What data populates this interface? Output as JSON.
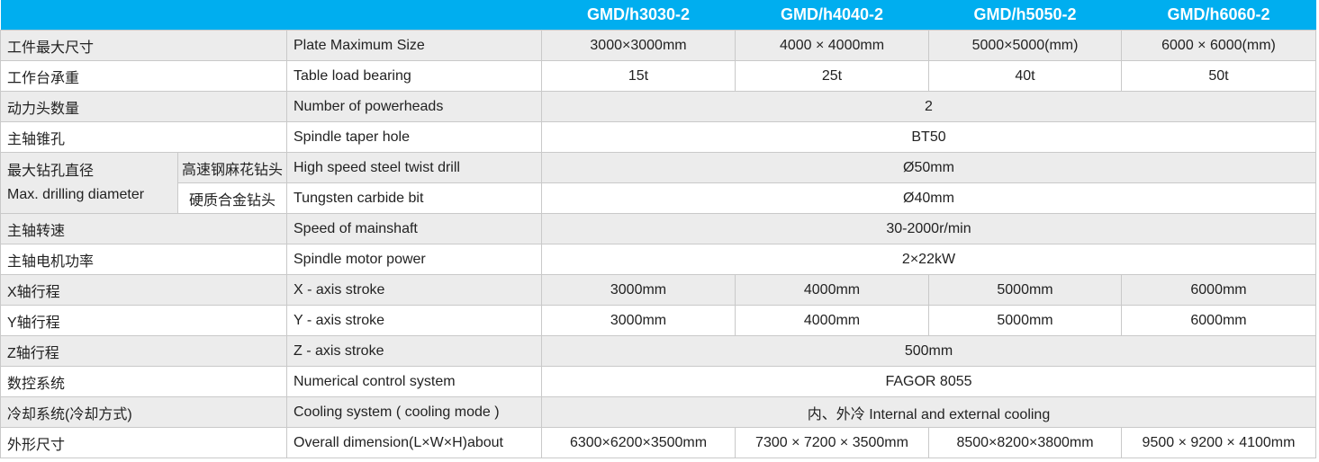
{
  "header": {
    "models": [
      "GMD/h3030-2",
      "GMD/h4040-2",
      "GMD/h5050-2",
      "GMD/h6060-2"
    ]
  },
  "colors": {
    "header_bg": "#00aeef",
    "stripe": "#ececec"
  },
  "rows": [
    {
      "cn": "工件最大尺寸",
      "en": "Plate Maximum Size",
      "values": [
        "3000×3000mm",
        "4000 × 4000mm",
        "5000×5000(mm)",
        "6000 × 6000(mm)"
      ]
    },
    {
      "cn": "工作台承重",
      "en": "Table load bearing",
      "values": [
        "15t",
        "25t",
        "40t",
        "50t"
      ]
    },
    {
      "cn": "动力头数量",
      "en": "Number of powerheads",
      "values": [
        "2"
      ]
    },
    {
      "cn": "主轴锥孔",
      "en": "Spindle taper hole",
      "values": [
        "BT50"
      ]
    },
    {
      "cn": "最大钻孔直径",
      "cn2": "Max. drilling diameter",
      "sub": "高速钢麻花钻头",
      "en": "High speed steel twist drill",
      "values": [
        "Ø50mm"
      ]
    },
    {
      "sub": "硬质合金钻头",
      "en": "Tungsten carbide bit",
      "values": [
        "Ø40mm"
      ]
    },
    {
      "cn": "主轴转速",
      "en": "Speed of mainshaft",
      "values": [
        "30-2000r/min"
      ]
    },
    {
      "cn": "主轴电机功率",
      "en": "Spindle motor power",
      "values": [
        "2×22kW"
      ]
    },
    {
      "cn": "X轴行程",
      "en": "X - axis stroke",
      "values": [
        "3000mm",
        "4000mm",
        "5000mm",
        "6000mm"
      ]
    },
    {
      "cn": "Y轴行程",
      "en": "Y - axis stroke",
      "values": [
        "3000mm",
        "4000mm",
        "5000mm",
        "6000mm"
      ]
    },
    {
      "cn": "Z轴行程",
      "en": "Z - axis stroke",
      "values": [
        "500mm"
      ]
    },
    {
      "cn": "数控系统",
      "en": "Numerical control system",
      "values": [
        "FAGOR 8055"
      ]
    },
    {
      "cn": "冷却系统(冷却方式)",
      "en": "Cooling system ( cooling mode )",
      "values": [
        "内、外冷 Internal and external cooling"
      ]
    },
    {
      "cn": "外形尺寸",
      "en": "Overall dimension(L×W×H)about",
      "values": [
        "6300×6200×3500mm",
        "7300 × 7200 × 3500mm",
        "8500×8200×3800mm",
        "9500 × 9200 × 4100mm"
      ]
    }
  ]
}
